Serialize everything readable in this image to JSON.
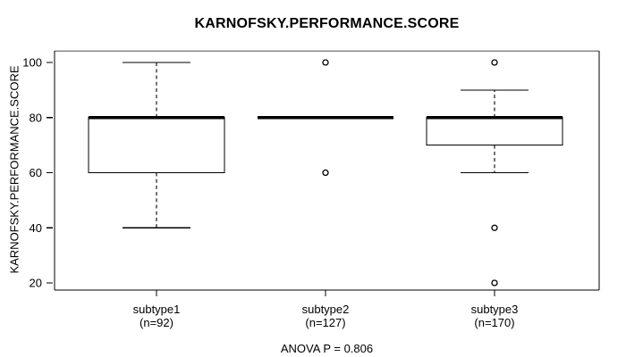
{
  "chart_data": {
    "type": "boxplot",
    "title": "KARNOFSKY.PERFORMANCE.SCORE",
    "ylabel": "KARNOFSKY.PERFORMANCE.SCORE",
    "xlabel": "",
    "annotation": "ANOVA P = 0.806",
    "y_ticks": [
      20,
      40,
      60,
      80,
      100
    ],
    "ylim": [
      17,
      104
    ],
    "grid": false,
    "legend": "none",
    "groups": [
      {
        "label": "subtype1",
        "sublabel": "(n=92)",
        "whisker_low": 40,
        "q1": 60,
        "median": 80,
        "q3": 80,
        "whisker_high": 100,
        "outliers": []
      },
      {
        "label": "subtype2",
        "sublabel": "(n=127)",
        "whisker_low": 80,
        "q1": 80,
        "median": 80,
        "q3": 80,
        "whisker_high": 80,
        "outliers": [
          100,
          60
        ]
      },
      {
        "label": "subtype3",
        "sublabel": "(n=170)",
        "whisker_low": 60,
        "q1": 70,
        "median": 80,
        "q3": 80,
        "whisker_high": 90,
        "outliers": [
          100,
          40,
          20
        ]
      }
    ],
    "colors": {
      "foreground": "#000000",
      "background": "#ffffff",
      "border_top": "#878787"
    }
  }
}
